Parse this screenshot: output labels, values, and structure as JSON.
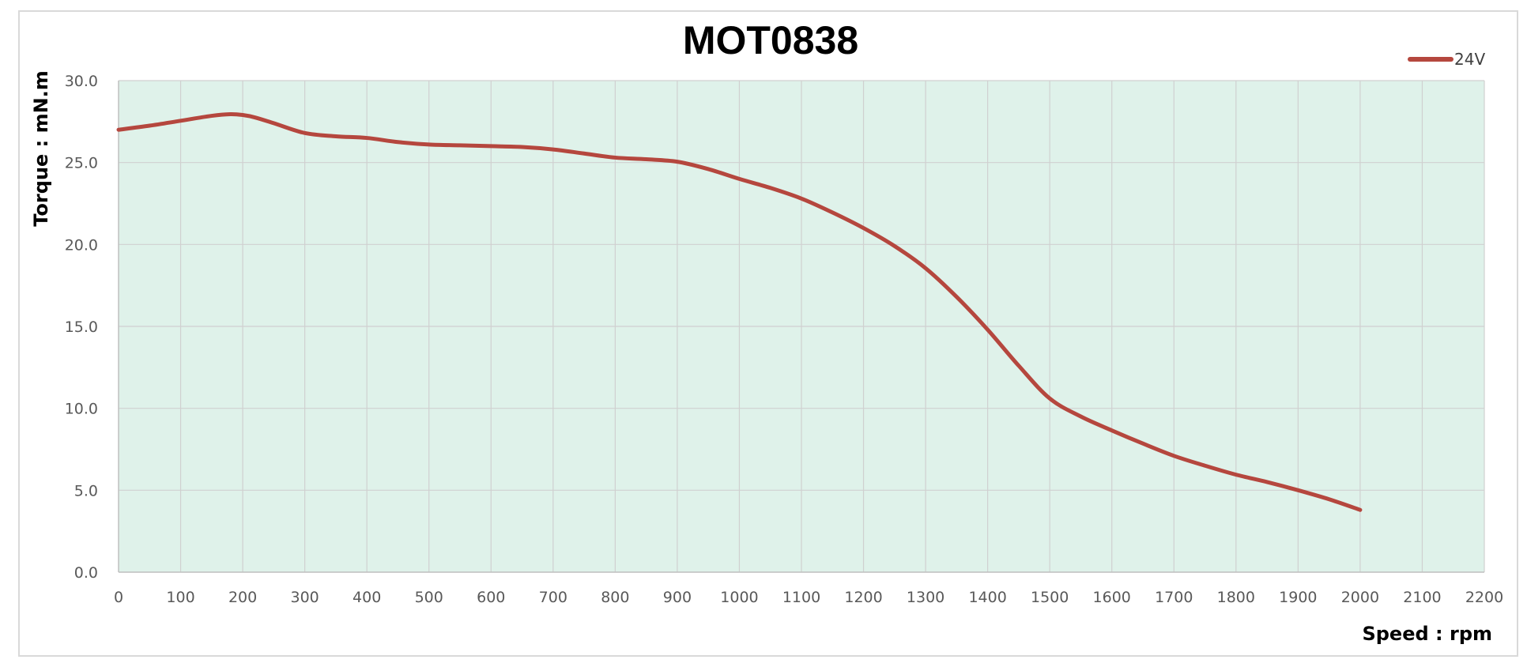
{
  "chart_data": {
    "type": "line",
    "title": "MOT0838",
    "xlabel": "Speed : rpm",
    "ylabel": "Torque : mN.m",
    "xlim": [
      0,
      2200
    ],
    "ylim": [
      0,
      30
    ],
    "x_ticks": [
      "0",
      "100",
      "200",
      "300",
      "400",
      "500",
      "600",
      "700",
      "800",
      "900",
      "1000",
      "1100",
      "1200",
      "1300",
      "1400",
      "1500",
      "1600",
      "1700",
      "1800",
      "1900",
      "2000",
      "2100",
      "2200"
    ],
    "y_ticks": [
      "0.0",
      "5.0",
      "10.0",
      "15.0",
      "20.0",
      "25.0",
      "30.0"
    ],
    "grid": true,
    "legend_position": "top-right",
    "colors": {
      "plot_background": "#dff2ea",
      "grid": "#d0d0d0",
      "frame": "#d9d9d9",
      "series": "#b5473e"
    },
    "series": [
      {
        "name": "24V",
        "x": [
          0,
          50,
          100,
          150,
          180,
          200,
          220,
          250,
          300,
          350,
          400,
          450,
          500,
          550,
          600,
          650,
          700,
          750,
          800,
          850,
          900,
          950,
          1000,
          1050,
          1100,
          1150,
          1200,
          1250,
          1300,
          1350,
          1400,
          1450,
          1500,
          1550,
          1600,
          1650,
          1700,
          1750,
          1800,
          1850,
          1900,
          1950,
          2000
        ],
        "y": [
          27.0,
          27.25,
          27.55,
          27.85,
          27.95,
          27.9,
          27.75,
          27.4,
          26.8,
          26.6,
          26.5,
          26.25,
          26.1,
          26.05,
          26.0,
          25.95,
          25.8,
          25.55,
          25.3,
          25.2,
          25.05,
          24.6,
          24.0,
          23.45,
          22.8,
          21.95,
          21.0,
          19.9,
          18.55,
          16.8,
          14.8,
          12.6,
          10.6,
          9.5,
          8.65,
          7.85,
          7.1,
          6.5,
          5.95,
          5.5,
          5.0,
          4.45,
          3.8
        ]
      }
    ]
  }
}
